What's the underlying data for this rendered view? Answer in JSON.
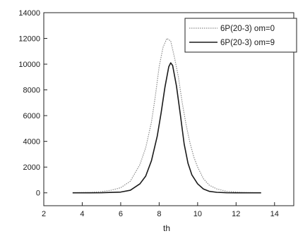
{
  "chart_data": {
    "type": "line",
    "title": "",
    "xlabel": "th",
    "ylabel": "",
    "xlim": [
      2,
      15
    ],
    "ylim": [
      -1000,
      14000
    ],
    "xticks": [
      "2",
      "4",
      "6",
      "8",
      "10",
      "12",
      "14"
    ],
    "yticks": [
      "0",
      "2000",
      "4000",
      "6000",
      "8000",
      "10000",
      "12000",
      "14000"
    ],
    "grid": false,
    "legend": "top-right",
    "series": [
      {
        "name": "6P(20-3) om=0",
        "style": "dotted",
        "color": "#8a8a8a",
        "x": [
          3.5,
          4.0,
          4.5,
          5.0,
          5.5,
          6.0,
          6.5,
          7.0,
          7.3,
          7.6,
          7.8,
          8.0,
          8.2,
          8.4,
          8.6,
          8.8,
          9.0,
          9.2,
          9.4,
          9.6,
          9.8,
          10.0,
          10.3,
          10.6,
          11.0,
          11.5,
          12.0,
          12.5,
          13.3
        ],
        "y": [
          0,
          20,
          40,
          100,
          200,
          400,
          900,
          2200,
          3500,
          5500,
          7500,
          9800,
          11300,
          12000,
          11800,
          10500,
          9000,
          7000,
          5300,
          3900,
          2800,
          2000,
          1100,
          600,
          300,
          120,
          60,
          20,
          0
        ]
      },
      {
        "name": "6P(20-3) om=9",
        "style": "solid",
        "color": "#1a1a1a",
        "x": [
          3.5,
          4.0,
          5.0,
          6.0,
          6.5,
          7.0,
          7.3,
          7.6,
          7.9,
          8.1,
          8.3,
          8.5,
          8.6,
          8.7,
          8.9,
          9.1,
          9.3,
          9.5,
          9.7,
          10.0,
          10.3,
          10.6,
          11.0,
          11.5,
          12.0,
          13.3
        ],
        "y": [
          0,
          0,
          10,
          60,
          200,
          700,
          1300,
          2500,
          4400,
          6200,
          8200,
          9800,
          10100,
          9900,
          8300,
          6100,
          3800,
          2300,
          1400,
          700,
          300,
          120,
          40,
          10,
          0,
          0
        ]
      }
    ]
  }
}
